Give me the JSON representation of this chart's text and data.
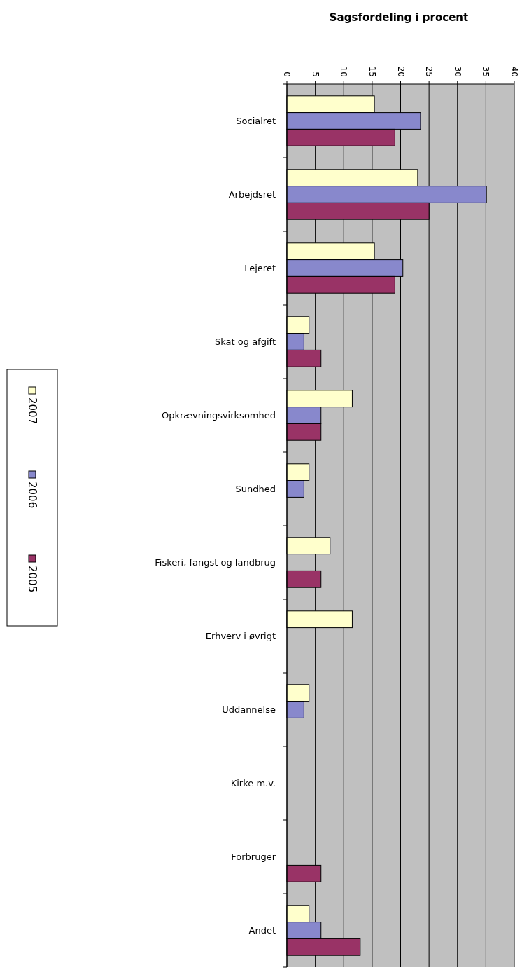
{
  "chart_data": {
    "type": "bar",
    "orientation": "horizontal",
    "title": "Sagsfordeling i procent",
    "categories": [
      "Socialret",
      "Arbejdsret",
      "Lejeret",
      "Skat og afgift",
      "Opkrævningsvirksomhed",
      "Sundhed",
      "Fiskeri, fangst og landbrug",
      "Erhverv i øvrigt",
      "Uddannelse",
      "Kirke m.v.",
      "Forbruger",
      "Andet"
    ],
    "series": [
      {
        "name": "2007",
        "color": "#ffffcc",
        "values": [
          15.4,
          23,
          15.4,
          3.9,
          11.5,
          3.9,
          7.6,
          11.5,
          3.9,
          null,
          null,
          3.9
        ]
      },
      {
        "name": "2006",
        "color": "#8888cc",
        "values": [
          23.5,
          35.1,
          20.4,
          3,
          6,
          3,
          null,
          null,
          3,
          null,
          null,
          6
        ]
      },
      {
        "name": "2005",
        "color": "#993366",
        "values": [
          19,
          25,
          19,
          6,
          6,
          null,
          6,
          null,
          null,
          null,
          6,
          12.9
        ]
      }
    ],
    "xlim": [
      0,
      40
    ],
    "xticks": [
      0,
      5,
      10,
      15,
      20,
      25,
      30,
      35,
      40
    ],
    "grid": "x",
    "legend": "left"
  }
}
